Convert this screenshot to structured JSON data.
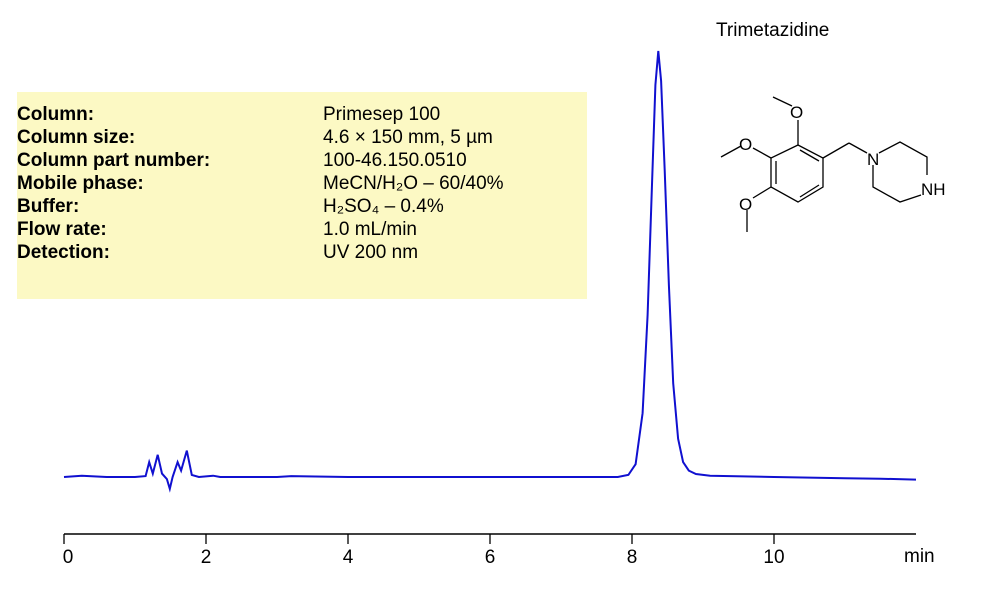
{
  "chart_data": {
    "type": "line",
    "title": "",
    "compound_label": "Trimetazidine",
    "xlabel": "min",
    "ylabel": "",
    "xlim": [
      0,
      12
    ],
    "x_ticks": [
      0,
      2,
      4,
      6,
      8,
      10
    ],
    "x_tick_labels": [
      "0",
      "2",
      "4",
      "6",
      "8",
      "10"
    ],
    "grid": false,
    "line_color": "#1010d0",
    "series": [
      {
        "points": [
          [
            0,
            0
          ],
          [
            0.25,
            0.3
          ],
          [
            0.6,
            0
          ],
          [
            1.0,
            0
          ],
          [
            1.15,
            0.2
          ],
          [
            1.2,
            3.5
          ],
          [
            1.25,
            0.8
          ],
          [
            1.32,
            5.2
          ],
          [
            1.38,
            0.8
          ],
          [
            1.45,
            -0.5
          ],
          [
            1.49,
            -2.8
          ],
          [
            1.53,
            0
          ],
          [
            1.6,
            3.5
          ],
          [
            1.65,
            1.5
          ],
          [
            1.73,
            6.2
          ],
          [
            1.8,
            0.5
          ],
          [
            1.9,
            0
          ],
          [
            2.1,
            0.3
          ],
          [
            2.2,
            0
          ],
          [
            3.0,
            0
          ],
          [
            3.2,
            0.2
          ],
          [
            4.0,
            0
          ],
          [
            5.0,
            0
          ],
          [
            6.0,
            0
          ],
          [
            7.0,
            0
          ],
          [
            7.8,
            0
          ],
          [
            7.95,
            0.5
          ],
          [
            8.05,
            3
          ],
          [
            8.15,
            15
          ],
          [
            8.22,
            38
          ],
          [
            8.28,
            68
          ],
          [
            8.33,
            92
          ],
          [
            8.37,
            100
          ],
          [
            8.41,
            93
          ],
          [
            8.46,
            72
          ],
          [
            8.52,
            45
          ],
          [
            8.58,
            22
          ],
          [
            8.65,
            9
          ],
          [
            8.72,
            3.5
          ],
          [
            8.8,
            1.5
          ],
          [
            8.9,
            0.7
          ],
          [
            9.1,
            0.3
          ],
          [
            10,
            0
          ],
          [
            11,
            -0.3
          ],
          [
            11.5,
            -0.4
          ],
          [
            12,
            -0.6
          ]
        ]
      }
    ]
  },
  "conditions": [
    {
      "label": "Column:",
      "value": "Primesep  100"
    },
    {
      "label": "Column size:",
      "value": "4.6 × 150 mm, 5 µm"
    },
    {
      "label": "Column part number:",
      "value": "100-46.150.0510"
    },
    {
      "label": "Mobile phase:",
      "value": "MeCN/H₂O – 60/40%"
    },
    {
      "label": "Buffer:",
      "value": "H₂SO₄ – 0.4%"
    },
    {
      "label": "Flow rate:",
      "value": "1.0 mL/min"
    },
    {
      "label": "Detection:",
      "value": "UV 200  nm"
    }
  ],
  "structure_labels": {
    "n": "N",
    "nh": "NH",
    "o": "O"
  }
}
